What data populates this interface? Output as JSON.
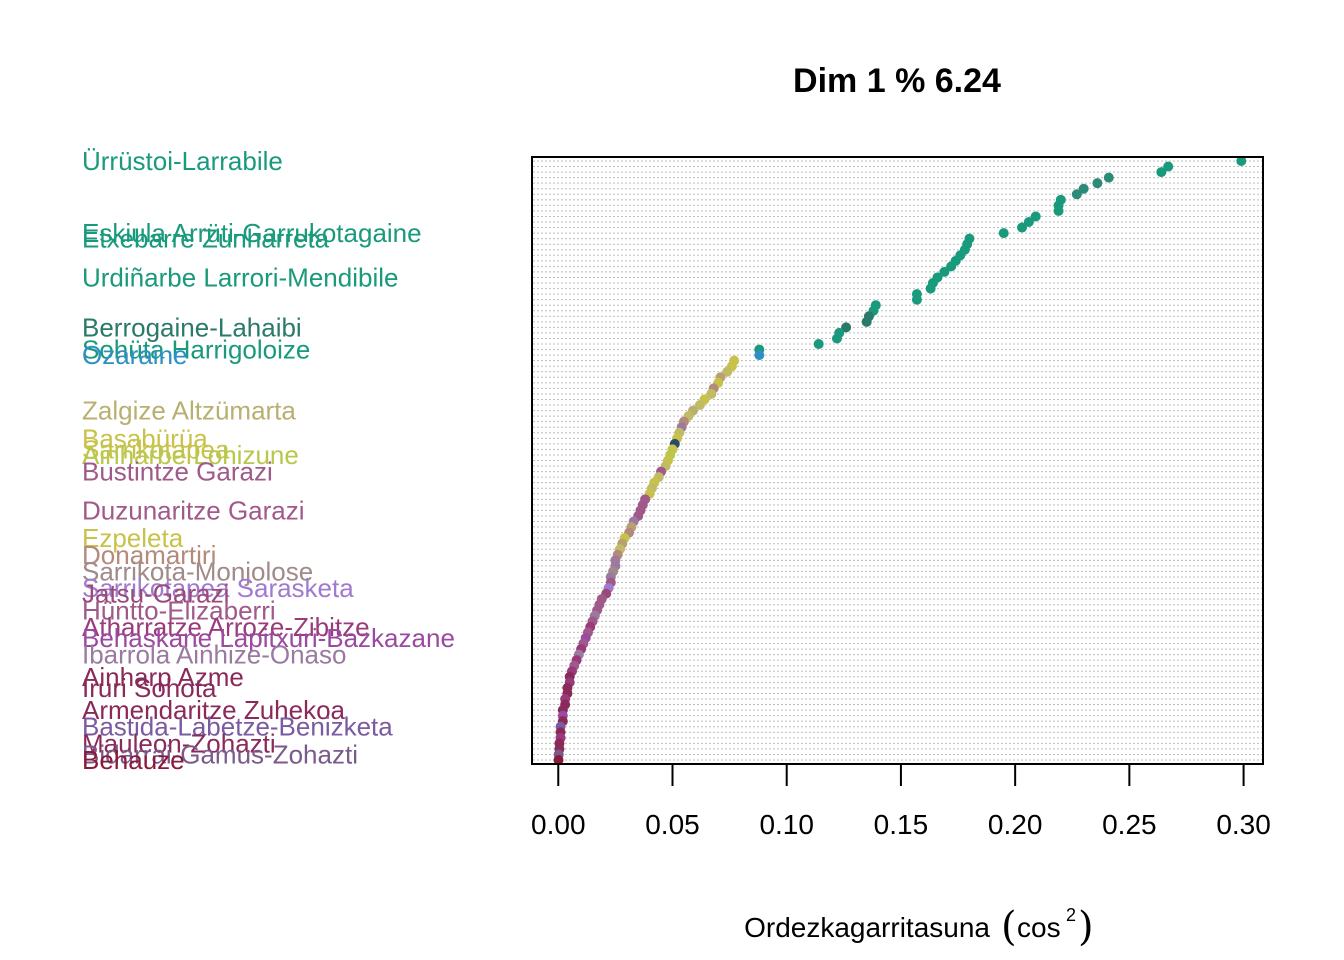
{
  "chart_data": {
    "type": "scatter",
    "title": "Dim 1 % 6.24",
    "xlabel": "Ordezkagarritasuna",
    "xlabel_symbol": "cos",
    "xlabel_sup": "2",
    "xlim": [
      -0.0115,
      0.3085
    ],
    "xticks": [
      "0.00",
      "0.05",
      "0.10",
      "0.15",
      "0.20",
      "0.25",
      "0.30"
    ],
    "grid": "horizontal dotted lines",
    "points": [
      {
        "label": "Ürrüstoi-Larrabile",
        "value": 0.299,
        "color": "#1a9a7c"
      },
      {
        "label": "",
        "value": 0.267,
        "color": "#1a9a7c"
      },
      {
        "label": "",
        "value": 0.264,
        "color": "#1a9a7c"
      },
      {
        "label": "",
        "value": 0.241,
        "color": "#2b8a78"
      },
      {
        "label": "",
        "value": 0.236,
        "color": "#2b8a78"
      },
      {
        "label": "",
        "value": 0.23,
        "color": "#2b8a78"
      },
      {
        "label": "",
        "value": 0.227,
        "color": "#2b8a78"
      },
      {
        "label": "",
        "value": 0.22,
        "color": "#1a9a7c"
      },
      {
        "label": "",
        "value": 0.219,
        "color": "#1a9a7c"
      },
      {
        "label": "",
        "value": 0.219,
        "color": "#1a9a7c"
      },
      {
        "label": "",
        "value": 0.209,
        "color": "#1a9a7c"
      },
      {
        "label": "",
        "value": 0.206,
        "color": "#1a9a7c"
      },
      {
        "label": "",
        "value": 0.203,
        "color": "#1a9a7c"
      },
      {
        "label": "Eskiula Arrüti-Garrukotagaine",
        "value": 0.195,
        "color": "#1a9a7c"
      },
      {
        "label": "Etxebarre Zunharreta",
        "value": 0.18,
        "color": "#1a9a7c"
      },
      {
        "label": "",
        "value": 0.179,
        "color": "#1a9a7c"
      },
      {
        "label": "",
        "value": 0.178,
        "color": "#1a9a7c"
      },
      {
        "label": "",
        "value": 0.176,
        "color": "#1a9a7c"
      },
      {
        "label": "",
        "value": 0.174,
        "color": "#1a9a7c"
      },
      {
        "label": "",
        "value": 0.172,
        "color": "#1a9a7c"
      },
      {
        "label": "",
        "value": 0.169,
        "color": "#1a9a7c"
      },
      {
        "label": "Urdiñarbe Larrori-Mendibile",
        "value": 0.166,
        "color": "#1a9a7c"
      },
      {
        "label": "",
        "value": 0.164,
        "color": "#1a9a7c"
      },
      {
        "label": "",
        "value": 0.163,
        "color": "#1a9a7c"
      },
      {
        "label": "",
        "value": 0.157,
        "color": "#1a9a7c"
      },
      {
        "label": "",
        "value": 0.157,
        "color": "#1a9a7c"
      },
      {
        "label": "",
        "value": 0.139,
        "color": "#1a9a7c"
      },
      {
        "label": "",
        "value": 0.138,
        "color": "#1a9a7c"
      },
      {
        "label": "",
        "value": 0.136,
        "color": "#2a7a6a"
      },
      {
        "label": "",
        "value": 0.135,
        "color": "#2a7a6a"
      },
      {
        "label": "Berrogaine-Lahaibi",
        "value": 0.126,
        "color": "#2a7a6a"
      },
      {
        "label": "",
        "value": 0.123,
        "color": "#1a9a7c"
      },
      {
        "label": "",
        "value": 0.122,
        "color": "#1a9a7c"
      },
      {
        "label": "",
        "value": 0.114,
        "color": "#1a9a7c"
      },
      {
        "label": "Sohüta Harrigoloize",
        "value": 0.088,
        "color": "#1a9a7c"
      },
      {
        "label": "Ozaraine",
        "value": 0.088,
        "color": "#2e8fc4"
      },
      {
        "label": "",
        "value": 0.077,
        "color": "#c9c24a"
      },
      {
        "label": "",
        "value": 0.076,
        "color": "#c9c24a"
      },
      {
        "label": "",
        "value": 0.074,
        "color": "#c2bb66"
      },
      {
        "label": "",
        "value": 0.071,
        "color": "#b8a070"
      },
      {
        "label": "",
        "value": 0.07,
        "color": "#c9c24a"
      },
      {
        "label": "",
        "value": 0.068,
        "color": "#b48a7a"
      },
      {
        "label": "",
        "value": 0.067,
        "color": "#c2bb66"
      },
      {
        "label": "",
        "value": 0.064,
        "color": "#c9c24a"
      },
      {
        "label": "",
        "value": 0.062,
        "color": "#c2bb66"
      },
      {
        "label": "Zalgize Altzümarta",
        "value": 0.059,
        "color": "#b8b070"
      },
      {
        "label": "",
        "value": 0.057,
        "color": "#c2bb66"
      },
      {
        "label": "",
        "value": 0.055,
        "color": "#b48a7a"
      },
      {
        "label": "",
        "value": 0.054,
        "color": "#a07a9a"
      },
      {
        "label": "",
        "value": 0.053,
        "color": "#c2bb66"
      },
      {
        "label": "Basabürüa",
        "value": 0.052,
        "color": "#c9c24a"
      },
      {
        "label": "",
        "value": 0.051,
        "color": "#2a4a6a"
      },
      {
        "label": "Sarrikotapea",
        "value": 0.05,
        "color": "#c9c24a"
      },
      {
        "label": "Ainharbe Lohizune",
        "value": 0.049,
        "color": "#b8c84a"
      },
      {
        "label": "",
        "value": 0.048,
        "color": "#c9c24a"
      },
      {
        "label": "",
        "value": 0.047,
        "color": "#c2bb66"
      },
      {
        "label": "Bustintze Garazi",
        "value": 0.045,
        "color": "#a05a8a"
      },
      {
        "label": "",
        "value": 0.044,
        "color": "#c2bb66"
      },
      {
        "label": "",
        "value": 0.042,
        "color": "#c9c24a"
      },
      {
        "label": "",
        "value": 0.041,
        "color": "#c2bb66"
      },
      {
        "label": "",
        "value": 0.04,
        "color": "#c9c24a"
      },
      {
        "label": "",
        "value": 0.038,
        "color": "#a05a8a"
      },
      {
        "label": "",
        "value": 0.037,
        "color": "#a05a8a"
      },
      {
        "label": "Duzunaritze Garazi",
        "value": 0.036,
        "color": "#a05a8a"
      },
      {
        "label": "",
        "value": 0.035,
        "color": "#a05a8a"
      },
      {
        "label": "",
        "value": 0.033,
        "color": "#9a7aa0"
      },
      {
        "label": "",
        "value": 0.032,
        "color": "#b8a070"
      },
      {
        "label": "",
        "value": 0.031,
        "color": "#b48a7a"
      },
      {
        "label": "Ezpeleta",
        "value": 0.029,
        "color": "#c9c24a"
      },
      {
        "label": "",
        "value": 0.028,
        "color": "#b8a070"
      },
      {
        "label": "",
        "value": 0.027,
        "color": "#c2bb66"
      },
      {
        "label": "Donamartiri",
        "value": 0.026,
        "color": "#b48a7a"
      },
      {
        "label": "",
        "value": 0.025,
        "color": "#a07a9a"
      },
      {
        "label": "",
        "value": 0.025,
        "color": "#9a7aa0"
      },
      {
        "label": "Sarrikota-Monjolose",
        "value": 0.024,
        "color": "#a08a8a"
      },
      {
        "label": "",
        "value": 0.023,
        "color": "#9a7aa0"
      },
      {
        "label": "",
        "value": 0.023,
        "color": "#a05a8a"
      },
      {
        "label": "Sarrikotapea Sarasketa",
        "value": 0.022,
        "color": "#a07ad0"
      },
      {
        "label": "Jatsu-Garazi",
        "value": 0.021,
        "color": "#9a4a7a"
      },
      {
        "label": "",
        "value": 0.019,
        "color": "#a05a8a"
      },
      {
        "label": "",
        "value": 0.018,
        "color": "#a05a8a"
      },
      {
        "label": "Hüntto-Elizaberri",
        "value": 0.017,
        "color": "#a05a8a"
      },
      {
        "label": "",
        "value": 0.016,
        "color": "#9a7aa0"
      },
      {
        "label": "",
        "value": 0.015,
        "color": "#a05a8a"
      },
      {
        "label": "Atharratze Arroze-Zibitze",
        "value": 0.014,
        "color": "#9a3a7a"
      },
      {
        "label": "",
        "value": 0.013,
        "color": "#a05a8a"
      },
      {
        "label": "Behaskane Lapitxuri-Bazkazane",
        "value": 0.012,
        "color": "#9a4aa0"
      },
      {
        "label": "",
        "value": 0.011,
        "color": "#a05a8a"
      },
      {
        "label": "",
        "value": 0.01,
        "color": "#9a3a7a"
      },
      {
        "label": "Ibarrola Ainhize-Onaso",
        "value": 0.009,
        "color": "#9a7aa0"
      },
      {
        "label": "",
        "value": 0.008,
        "color": "#9a3a7a"
      },
      {
        "label": "",
        "value": 0.007,
        "color": "#a05a8a"
      },
      {
        "label": "",
        "value": 0.006,
        "color": "#9a3a7a"
      },
      {
        "label": "Ainharp Azme",
        "value": 0.005,
        "color": "#8a2a5a"
      },
      {
        "label": "",
        "value": 0.005,
        "color": "#9a3a7a"
      },
      {
        "label": "Iruri Sohota",
        "value": 0.004,
        "color": "#8a2a5a"
      },
      {
        "label": "",
        "value": 0.004,
        "color": "#8a2a5a"
      },
      {
        "label": "",
        "value": 0.003,
        "color": "#9a3a7a"
      },
      {
        "label": "",
        "value": 0.003,
        "color": "#8a2a5a"
      },
      {
        "label": "Armendaritze Zuhekoa",
        "value": 0.002,
        "color": "#8a2a5a"
      },
      {
        "label": "",
        "value": 0.002,
        "color": "#9a4aa0"
      },
      {
        "label": "",
        "value": 0.002,
        "color": "#8a2a5a"
      },
      {
        "label": "Bastida-Labetze-Benizketa",
        "value": 0.001,
        "color": "#7a5aa0"
      },
      {
        "label": "",
        "value": 0.001,
        "color": "#8a2a5a"
      },
      {
        "label": "",
        "value": 0.001,
        "color": "#9a3a7a"
      },
      {
        "label": "Mauleon-Zohazti",
        "value": 0.0005,
        "color": "#8a2a5a"
      },
      {
        "label": "",
        "value": 0.0005,
        "color": "#8a2a5a"
      },
      {
        "label": "Bidarrai-Gamus-Zohazti",
        "value": 0.0002,
        "color": "#7a5a8a"
      },
      {
        "label": "Behauze",
        "value": 0.0001,
        "color": "#8a1a3a"
      }
    ]
  }
}
